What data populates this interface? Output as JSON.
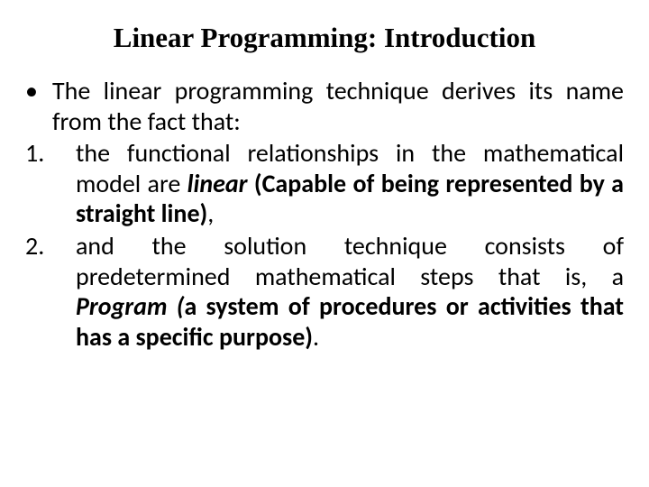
{
  "title": "Linear Programming: Introduction",
  "bullet": {
    "mark": "•",
    "text": "The linear programming technique derives its name from the fact that:"
  },
  "item1": {
    "num": "1.",
    "pre": " the functional relationships in the mathematical model are ",
    "linear": "linear",
    "post": " (Capable of being represented by a straight line)",
    "comma": ","
  },
  "item2": {
    "num": "2.",
    "pre": "and the solution technique consists of predetermined mathematical steps that is, a ",
    "program": "Program (",
    "post": "a system of procedures or activities that has a specific purpose)",
    "period": "."
  }
}
